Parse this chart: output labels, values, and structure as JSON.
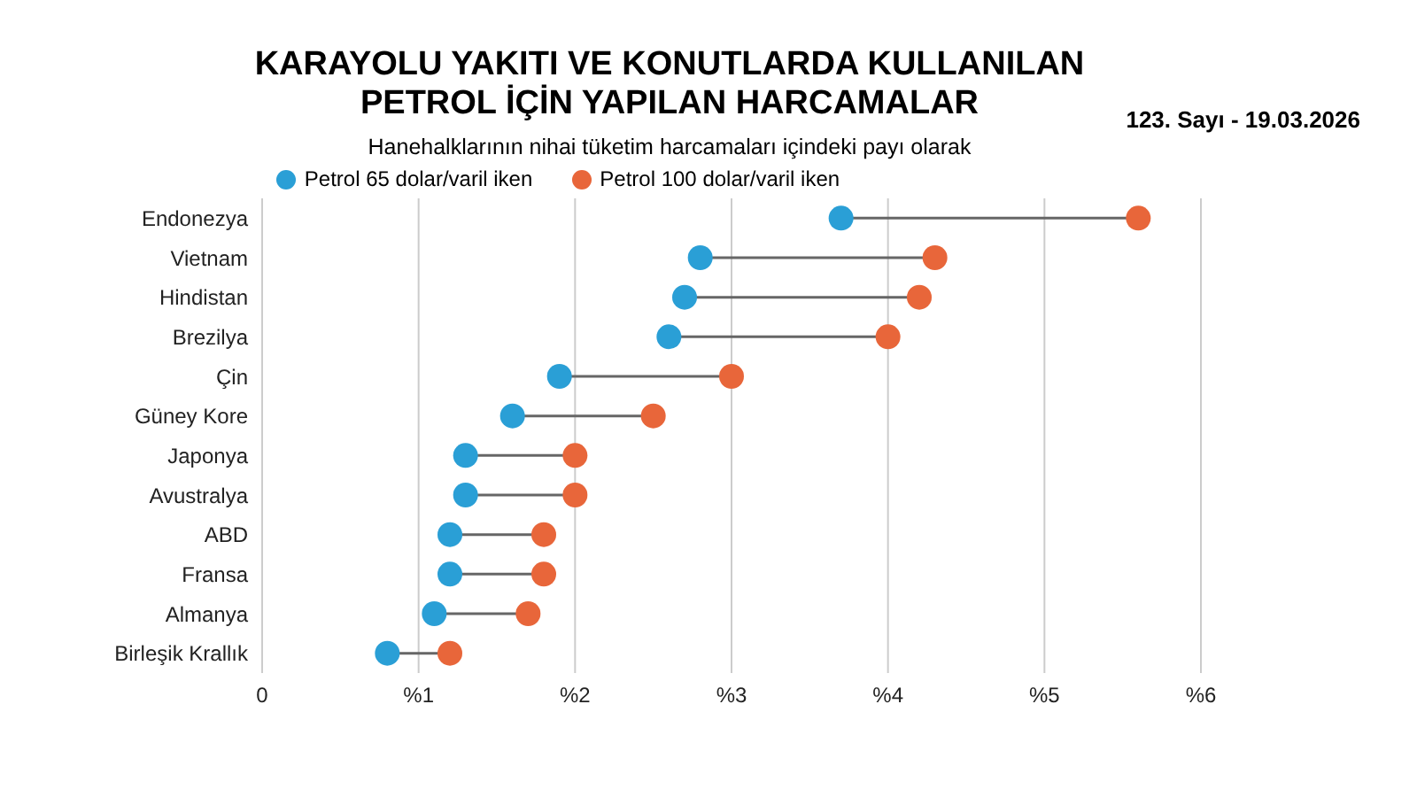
{
  "chart_data": {
    "type": "scatter",
    "orientation": "horizontal",
    "title": "KARAYOLU YAKITI VE KONUTLARDA KULLANILAN PETROL İÇİN YAPILAN HARCAMALAR",
    "subtitle": "Hanehalklarının nihai tüketim harcamaları içindeki payı olarak",
    "annotations": [
      "123. Sayı - 19.03.2026"
    ],
    "categories": [
      "Endonezya",
      "Vietnam",
      "Hindistan",
      "Brezilya",
      "Çin",
      "Güney Kore",
      "Japonya",
      "Avustralya",
      "ABD",
      "Fransa",
      "Almanya",
      "Birleşik Krallık"
    ],
    "series": [
      {
        "name": "Petrol 65 dolar/varil iken",
        "color": "#2a9fd6",
        "values": [
          3.7,
          2.8,
          2.7,
          2.6,
          1.9,
          1.6,
          1.3,
          1.3,
          1.2,
          1.2,
          1.1,
          0.8
        ]
      },
      {
        "name": "Petrol 100 dolar/varil iken",
        "color": "#e8663a",
        "values": [
          5.6,
          4.3,
          4.2,
          4.0,
          3.0,
          2.5,
          2.0,
          2.0,
          1.8,
          1.8,
          1.7,
          1.2
        ]
      }
    ],
    "xlim": [
      0,
      6
    ],
    "xticks": [
      0,
      {
        "value": 1,
        "label": "%1"
      },
      {
        "value": 2,
        "label": "%2"
      },
      {
        "value": 3,
        "label": "%3"
      },
      {
        "value": 4,
        "label": "%4"
      },
      {
        "value": 5,
        "label": "%5"
      },
      {
        "value": 6,
        "label": "%6"
      }
    ],
    "grid": "x",
    "legend": "top",
    "marker": "circle"
  }
}
